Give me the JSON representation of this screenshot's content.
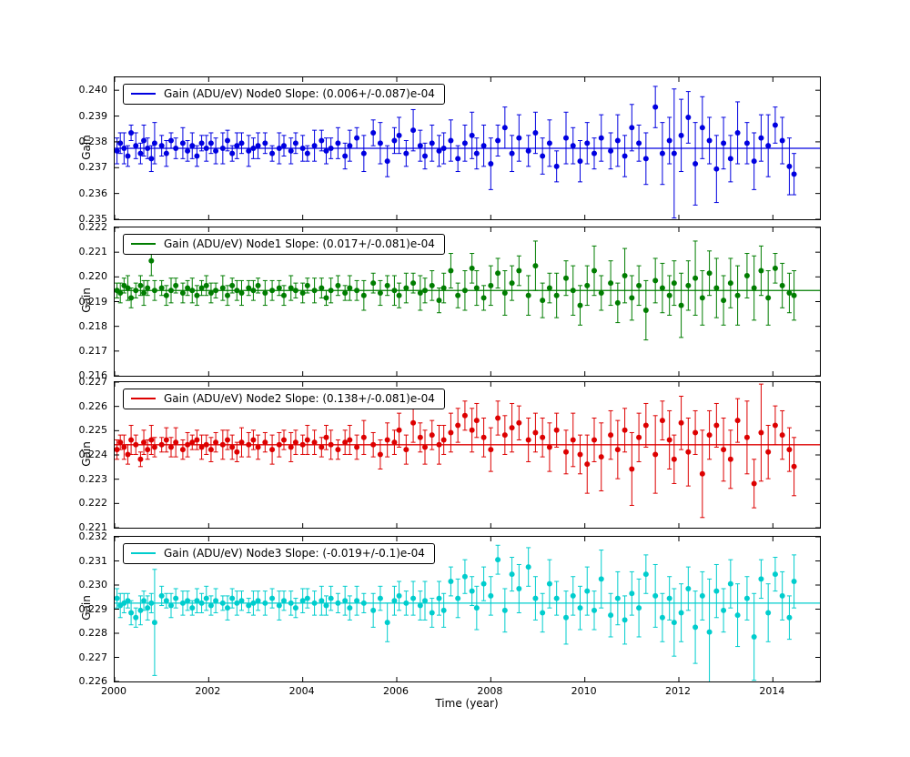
{
  "chart_data": {
    "type": "scatter",
    "note": "Four stacked errorbar scatter panels; y = fit + dy*offset_scale, error = err*offset_scale",
    "xlabel": "Time (year)",
    "xlim": [
      2000,
      2015
    ],
    "xticks": [
      2000,
      2002,
      2004,
      2006,
      2008,
      2010,
      2012,
      2014
    ],
    "offset_scale": 0.0001,
    "x": [
      2000.05,
      2000.12,
      2000.2,
      2000.28,
      2000.35,
      2000.45,
      2000.55,
      2000.62,
      2000.7,
      2000.78,
      2000.85,
      2001.0,
      2001.1,
      2001.2,
      2001.3,
      2001.45,
      2001.55,
      2001.65,
      2001.75,
      2001.85,
      2001.95,
      2002.05,
      2002.15,
      2002.3,
      2002.4,
      2002.5,
      2002.6,
      2002.7,
      2002.85,
      2002.95,
      2003.05,
      2003.2,
      2003.35,
      2003.5,
      2003.6,
      2003.75,
      2003.85,
      2004.0,
      2004.1,
      2004.25,
      2004.4,
      2004.5,
      2004.6,
      2004.75,
      2004.9,
      2005.0,
      2005.15,
      2005.3,
      2005.5,
      2005.65,
      2005.8,
      2005.95,
      2006.05,
      2006.2,
      2006.35,
      2006.5,
      2006.6,
      2006.75,
      2006.9,
      2007.0,
      2007.15,
      2007.3,
      2007.45,
      2007.6,
      2007.7,
      2007.85,
      2008.0,
      2008.15,
      2008.3,
      2008.45,
      2008.6,
      2008.8,
      2008.95,
      2009.1,
      2009.25,
      2009.4,
      2009.6,
      2009.75,
      2009.9,
      2010.05,
      2010.2,
      2010.35,
      2010.55,
      2010.7,
      2010.85,
      2011.0,
      2011.15,
      2011.3,
      2011.5,
      2011.65,
      2011.8,
      2011.9,
      2012.05,
      2012.2,
      2012.35,
      2012.5,
      2012.65,
      2012.8,
      2012.95,
      2013.1,
      2013.25,
      2013.45,
      2013.6,
      2013.75,
      2013.9,
      2014.05,
      2014.2,
      2014.35,
      2014.45
    ],
    "subplots": [
      {
        "name": "Node0",
        "color": "#0000e0",
        "legend": "Gain (ADU/eV) Node0 Slope: (0.006+/-0.087)e-04",
        "ylabel": "Gain",
        "ylim": [
          0.235,
          0.2405
        ],
        "yticks": [
          0.235,
          0.236,
          0.237,
          0.238,
          0.239,
          0.24
        ],
        "fit": 0.23775,
        "dy": [
          -1,
          2,
          0,
          -3,
          6,
          1,
          -2,
          3,
          0,
          -4,
          2,
          1,
          -2,
          3,
          0,
          2,
          -1,
          1,
          -3,
          2,
          0,
          2,
          -1,
          0,
          3,
          -2,
          1,
          2,
          -1,
          0,
          1,
          2,
          -2,
          0,
          1,
          -1,
          2,
          0,
          -2,
          1,
          3,
          -1,
          0,
          2,
          -3,
          1,
          4,
          -2,
          6,
          2,
          -5,
          3,
          5,
          -2,
          7,
          1,
          -3,
          2,
          -1,
          0,
          3,
          -4,
          2,
          5,
          -2,
          1,
          -6,
          3,
          8,
          -2,
          4,
          -1,
          6,
          -3,
          2,
          -7,
          4,
          1,
          -5,
          2,
          -2,
          4,
          -1,
          3,
          -3,
          8,
          2,
          -4,
          16,
          -2,
          3,
          -2,
          5,
          12,
          -6,
          8,
          3,
          -8,
          2,
          -4,
          6,
          2,
          -5,
          4,
          1,
          9,
          3,
          -7,
          -10
        ],
        "err": [
          5,
          4,
          6,
          4,
          3,
          5,
          4,
          6,
          4,
          5,
          8,
          4,
          5,
          3,
          4,
          6,
          4,
          5,
          4,
          3,
          5,
          4,
          5,
          6,
          4,
          3,
          5,
          4,
          6,
          4,
          5,
          4,
          3,
          6,
          4,
          5,
          4,
          5,
          3,
          6,
          4,
          5,
          4,
          6,
          5,
          6,
          4,
          7,
          5,
          8,
          6,
          5,
          7,
          5,
          8,
          6,
          5,
          7,
          6,
          6,
          8,
          5,
          7,
          9,
          6,
          8,
          10,
          6,
          8,
          7,
          9,
          6,
          8,
          7,
          9,
          6,
          10,
          7,
          8,
          8,
          6,
          9,
          7,
          10,
          8,
          9,
          7,
          10,
          8,
          12,
          9,
          25,
          14,
          10,
          16,
          12,
          9,
          13,
          10,
          9,
          12,
          8,
          11,
          9,
          12,
          7,
          9,
          11,
          8
        ]
      },
      {
        "name": "Node1",
        "color": "#007d00",
        "legend": "Gain (ADU/eV) Node1 Slope: (0.017+/-0.081)e-04",
        "ylabel": "Gain",
        "ylim": [
          0.216,
          0.222
        ],
        "yticks": [
          0.216,
          0.217,
          0.218,
          0.219,
          0.22,
          0.221,
          0.222
        ],
        "fit": 0.21945,
        "dy": [
          0,
          -1,
          2,
          1,
          -3,
          0,
          2,
          -1,
          1,
          12,
          0,
          1,
          -2,
          0,
          2,
          -1,
          1,
          0,
          -2,
          1,
          2,
          -1,
          0,
          1,
          -2,
          2,
          0,
          -1,
          1,
          0,
          2,
          -1,
          0,
          1,
          -2,
          1,
          0,
          -1,
          2,
          0,
          1,
          -3,
          0,
          2,
          -1,
          1,
          0,
          -2,
          3,
          -1,
          2,
          0,
          -2,
          1,
          3,
          -1,
          0,
          2,
          -4,
          1,
          8,
          -2,
          0,
          9,
          1,
          -3,
          2,
          7,
          -1,
          3,
          8,
          -2,
          10,
          -4,
          1,
          -2,
          5,
          0,
          -6,
          2,
          8,
          -1,
          3,
          -5,
          6,
          -3,
          2,
          -8,
          4,
          1,
          -2,
          3,
          -6,
          2,
          5,
          -3,
          7,
          1,
          -4,
          3,
          -2,
          6,
          1,
          8,
          -3,
          9,
          2,
          -1,
          -2
        ],
        "err": [
          3,
          4,
          3,
          5,
          4,
          3,
          4,
          5,
          3,
          6,
          4,
          3,
          4,
          5,
          3,
          4,
          3,
          5,
          4,
          3,
          4,
          4,
          3,
          5,
          4,
          3,
          4,
          5,
          3,
          4,
          3,
          5,
          4,
          3,
          4,
          5,
          3,
          4,
          3,
          5,
          4,
          3,
          5,
          4,
          3,
          5,
          4,
          6,
          4,
          5,
          4,
          6,
          5,
          6,
          4,
          7,
          5,
          6,
          5,
          6,
          7,
          5,
          8,
          6,
          7,
          5,
          8,
          6,
          9,
          7,
          6,
          8,
          10,
          7,
          6,
          9,
          7,
          10,
          8,
          8,
          10,
          7,
          9,
          8,
          11,
          9,
          8,
          12,
          9,
          10,
          8,
          9,
          13,
          10,
          15,
          11,
          9,
          12,
          10,
          10,
          12,
          9,
          13,
          10,
          11,
          6,
          9,
          8,
          10
        ]
      },
      {
        "name": "Node2",
        "color": "#dd0000",
        "legend": "Gain (ADU/eV) Node2 Slope: (0.138+/-0.081)e-04",
        "ylabel": "Gain",
        "ylim": [
          0.221,
          0.227
        ],
        "yticks": [
          0.221,
          0.222,
          0.223,
          0.224,
          0.225,
          0.226,
          0.227
        ],
        "fit": 0.22442,
        "dy": [
          -2,
          1,
          -1,
          -4,
          2,
          0,
          -6,
          1,
          -2,
          2,
          -1,
          0,
          2,
          -1,
          1,
          -2,
          0,
          1,
          2,
          -1,
          0,
          -2,
          1,
          0,
          2,
          -1,
          -3,
          1,
          0,
          2,
          -1,
          1,
          -2,
          0,
          2,
          -1,
          1,
          0,
          2,
          1,
          -1,
          3,
          0,
          -2,
          1,
          2,
          -1,
          3,
          0,
          -4,
          2,
          1,
          6,
          -2,
          9,
          3,
          -1,
          4,
          0,
          2,
          5,
          8,
          12,
          6,
          10,
          3,
          -2,
          11,
          4,
          7,
          9,
          2,
          5,
          3,
          -1,
          6,
          -3,
          2,
          -4,
          -8,
          2,
          -5,
          4,
          -2,
          6,
          -10,
          3,
          8,
          -4,
          10,
          2,
          -6,
          9,
          -3,
          5,
          -12,
          4,
          8,
          -2,
          -6,
          10,
          3,
          -16,
          5,
          -3,
          8,
          4,
          -2,
          -9
        ],
        "err": [
          4,
          3,
          5,
          4,
          6,
          4,
          3,
          5,
          4,
          6,
          4,
          3,
          5,
          4,
          6,
          4,
          5,
          3,
          4,
          5,
          4,
          5,
          4,
          6,
          4,
          5,
          4,
          6,
          5,
          4,
          5,
          4,
          6,
          5,
          4,
          6,
          5,
          4,
          6,
          5,
          4,
          5,
          6,
          4,
          5,
          6,
          5,
          7,
          5,
          6,
          7,
          5,
          7,
          6,
          8,
          6,
          7,
          6,
          8,
          6,
          8,
          7,
          6,
          9,
          7,
          8,
          9,
          7,
          8,
          10,
          7,
          9,
          8,
          8,
          10,
          7,
          9,
          11,
          8,
          12,
          9,
          14,
          10,
          12,
          9,
          15,
          10,
          9,
          16,
          8,
          12,
          10,
          11,
          14,
          9,
          18,
          10,
          9,
          13,
          12,
          9,
          15,
          10,
          20,
          11,
          8,
          10,
          9,
          12
        ]
      },
      {
        "name": "Node3",
        "color": "#00cdcd",
        "legend": "Gain (ADU/eV) Node3 Slope: (-0.019+/-0.1)e-04",
        "ylabel": "Gain",
        "ylim": [
          0.226,
          0.232
        ],
        "yticks": [
          0.226,
          0.227,
          0.228,
          0.229,
          0.23,
          0.231,
          0.232
        ],
        "fit": 0.22925,
        "dy": [
          2,
          -1,
          0,
          1,
          -4,
          -6,
          -3,
          1,
          -2,
          0,
          -8,
          3,
          1,
          -1,
          2,
          0,
          1,
          -2,
          1,
          0,
          2,
          -1,
          1,
          0,
          -2,
          2,
          0,
          1,
          -1,
          0,
          1,
          0,
          2,
          -1,
          1,
          0,
          -2,
          1,
          2,
          0,
          1,
          -1,
          2,
          0,
          1,
          -2,
          1,
          0,
          -3,
          2,
          -8,
          1,
          3,
          0,
          2,
          -1,
          1,
          -4,
          2,
          -3,
          9,
          2,
          11,
          5,
          -2,
          8,
          3,
          18,
          -3,
          12,
          6,
          15,
          2,
          -4,
          8,
          2,
          -6,
          3,
          -2,
          5,
          -3,
          10,
          -5,
          2,
          -7,
          4,
          -2,
          12,
          3,
          -6,
          2,
          -8,
          -4,
          6,
          -10,
          3,
          -12,
          5,
          -3,
          8,
          -5,
          2,
          -14,
          10,
          -4,
          12,
          3,
          -6,
          9
        ],
        "err": [
          4,
          5,
          4,
          3,
          5,
          4,
          6,
          4,
          5,
          4,
          22,
          4,
          3,
          5,
          4,
          5,
          4,
          3,
          5,
          4,
          5,
          4,
          5,
          3,
          5,
          4,
          5,
          4,
          3,
          5,
          4,
          5,
          4,
          6,
          4,
          5,
          4,
          5,
          4,
          5,
          6,
          4,
          5,
          4,
          6,
          5,
          6,
          4,
          7,
          5,
          8,
          6,
          6,
          5,
          7,
          6,
          8,
          6,
          7,
          7,
          6,
          8,
          7,
          6,
          9,
          7,
          8,
          6,
          9,
          7,
          10,
          8,
          9,
          8,
          10,
          7,
          11,
          8,
          9,
          10,
          8,
          12,
          9,
          11,
          10,
          9,
          12,
          8,
          13,
          10,
          9,
          14,
          12,
          9,
          15,
          10,
          22,
          11,
          9,
          10,
          13,
          9,
          18,
          8,
          12,
          7,
          10,
          9,
          11
        ]
      }
    ]
  }
}
